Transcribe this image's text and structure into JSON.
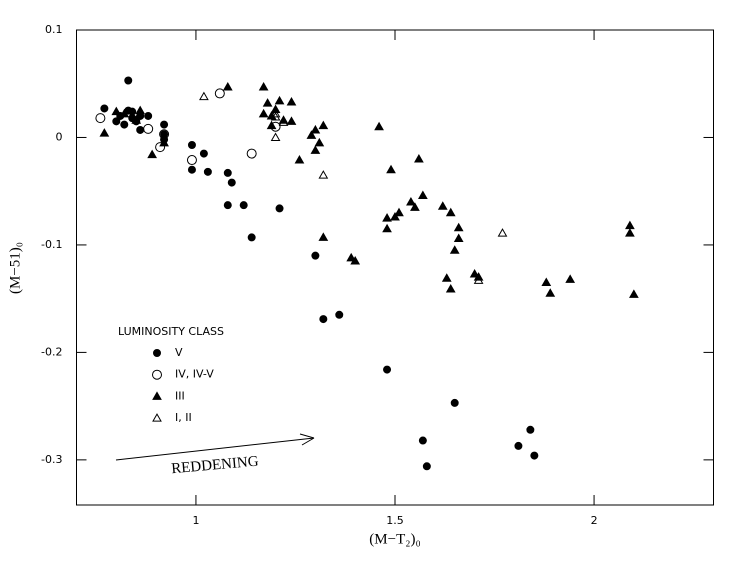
{
  "chart_data": {
    "type": "scatter",
    "xlabel": "(M−T₂)₀",
    "ylabel": "(M−51)₀",
    "xlim": [
      0.7,
      2.3
    ],
    "ylim": [
      -0.342,
      0.1
    ],
    "xticks": [
      1,
      1.5,
      2
    ],
    "yticks": [
      0.1,
      0,
      -0.1,
      -0.2,
      -0.3
    ],
    "legend_title": "LUMINOSITY CLASS",
    "annotation": "REDDENING",
    "series": [
      {
        "name": "V",
        "marker": "circle",
        "filled": true,
        "color": "#000000",
        "x": [
          0.77,
          0.8,
          0.81,
          0.82,
          0.83,
          0.83,
          0.84,
          0.84,
          0.85,
          0.86,
          0.86,
          0.88,
          0.92,
          0.92,
          0.92,
          0.99,
          0.99,
          1.02,
          1.03,
          1.08,
          1.09,
          1.08,
          1.12,
          1.14,
          1.21,
          1.3,
          1.32,
          1.36,
          1.48,
          1.57,
          1.58,
          1.65,
          1.81,
          1.84,
          1.85
        ],
        "y": [
          0.027,
          0.015,
          0.02,
          0.012,
          0.025,
          0.053,
          0.018,
          0.024,
          0.015,
          0.02,
          0.007,
          0.02,
          0.012,
          0.003,
          -0.002,
          -0.007,
          -0.03,
          -0.015,
          -0.032,
          -0.033,
          -0.042,
          -0.063,
          -0.063,
          -0.093,
          -0.066,
          -0.11,
          -0.169,
          -0.165,
          -0.216,
          -0.282,
          -0.306,
          -0.247,
          -0.287,
          -0.272,
          -0.296
        ]
      },
      {
        "name": "IV, IV-V",
        "marker": "circle",
        "filled": false,
        "color": "#000000",
        "x": [
          0.76,
          0.88,
          0.91,
          0.92,
          0.99,
          1.06,
          1.14,
          1.2
        ],
        "y": [
          0.018,
          0.008,
          -0.009,
          0.003,
          -0.021,
          0.041,
          -0.015,
          0.01
        ]
      },
      {
        "name": "III",
        "marker": "triangle",
        "filled": true,
        "color": "#000000",
        "x": [
          0.77,
          0.8,
          0.82,
          0.85,
          0.86,
          0.89,
          0.92,
          1.08,
          1.17,
          1.17,
          1.18,
          1.19,
          1.19,
          1.2,
          1.21,
          1.22,
          1.24,
          1.24,
          1.26,
          1.29,
          1.3,
          1.3,
          1.31,
          1.32,
          1.32,
          1.39,
          1.4,
          1.46,
          1.48,
          1.48,
          1.49,
          1.5,
          1.51,
          1.54,
          1.55,
          1.56,
          1.57,
          1.62,
          1.63,
          1.64,
          1.64,
          1.65,
          1.66,
          1.66,
          1.7,
          1.71,
          1.88,
          1.89,
          1.94,
          2.09,
          2.09,
          2.1
        ],
        "y": [
          0.004,
          0.024,
          0.022,
          0.016,
          0.025,
          -0.016,
          -0.005,
          0.047,
          0.047,
          0.022,
          0.032,
          0.02,
          0.011,
          0.026,
          0.034,
          0.016,
          0.033,
          0.015,
          -0.021,
          0.002,
          -0.012,
          0.007,
          -0.005,
          0.011,
          -0.093,
          -0.112,
          -0.115,
          0.01,
          -0.075,
          -0.085,
          -0.03,
          -0.074,
          -0.07,
          -0.06,
          -0.065,
          -0.02,
          -0.054,
          -0.064,
          -0.131,
          -0.07,
          -0.141,
          -0.105,
          -0.094,
          -0.084,
          -0.127,
          -0.13,
          -0.135,
          -0.145,
          -0.132,
          -0.089,
          -0.082,
          -0.146
        ]
      },
      {
        "name": "I, II",
        "marker": "triangle",
        "filled": false,
        "color": "#000000",
        "x": [
          1.02,
          1.2,
          1.2,
          1.2,
          1.22,
          1.32,
          1.71,
          1.77
        ],
        "y": [
          0.038,
          0.022,
          0.019,
          0.0,
          0.014,
          -0.035,
          -0.133,
          -0.089
        ]
      }
    ]
  }
}
